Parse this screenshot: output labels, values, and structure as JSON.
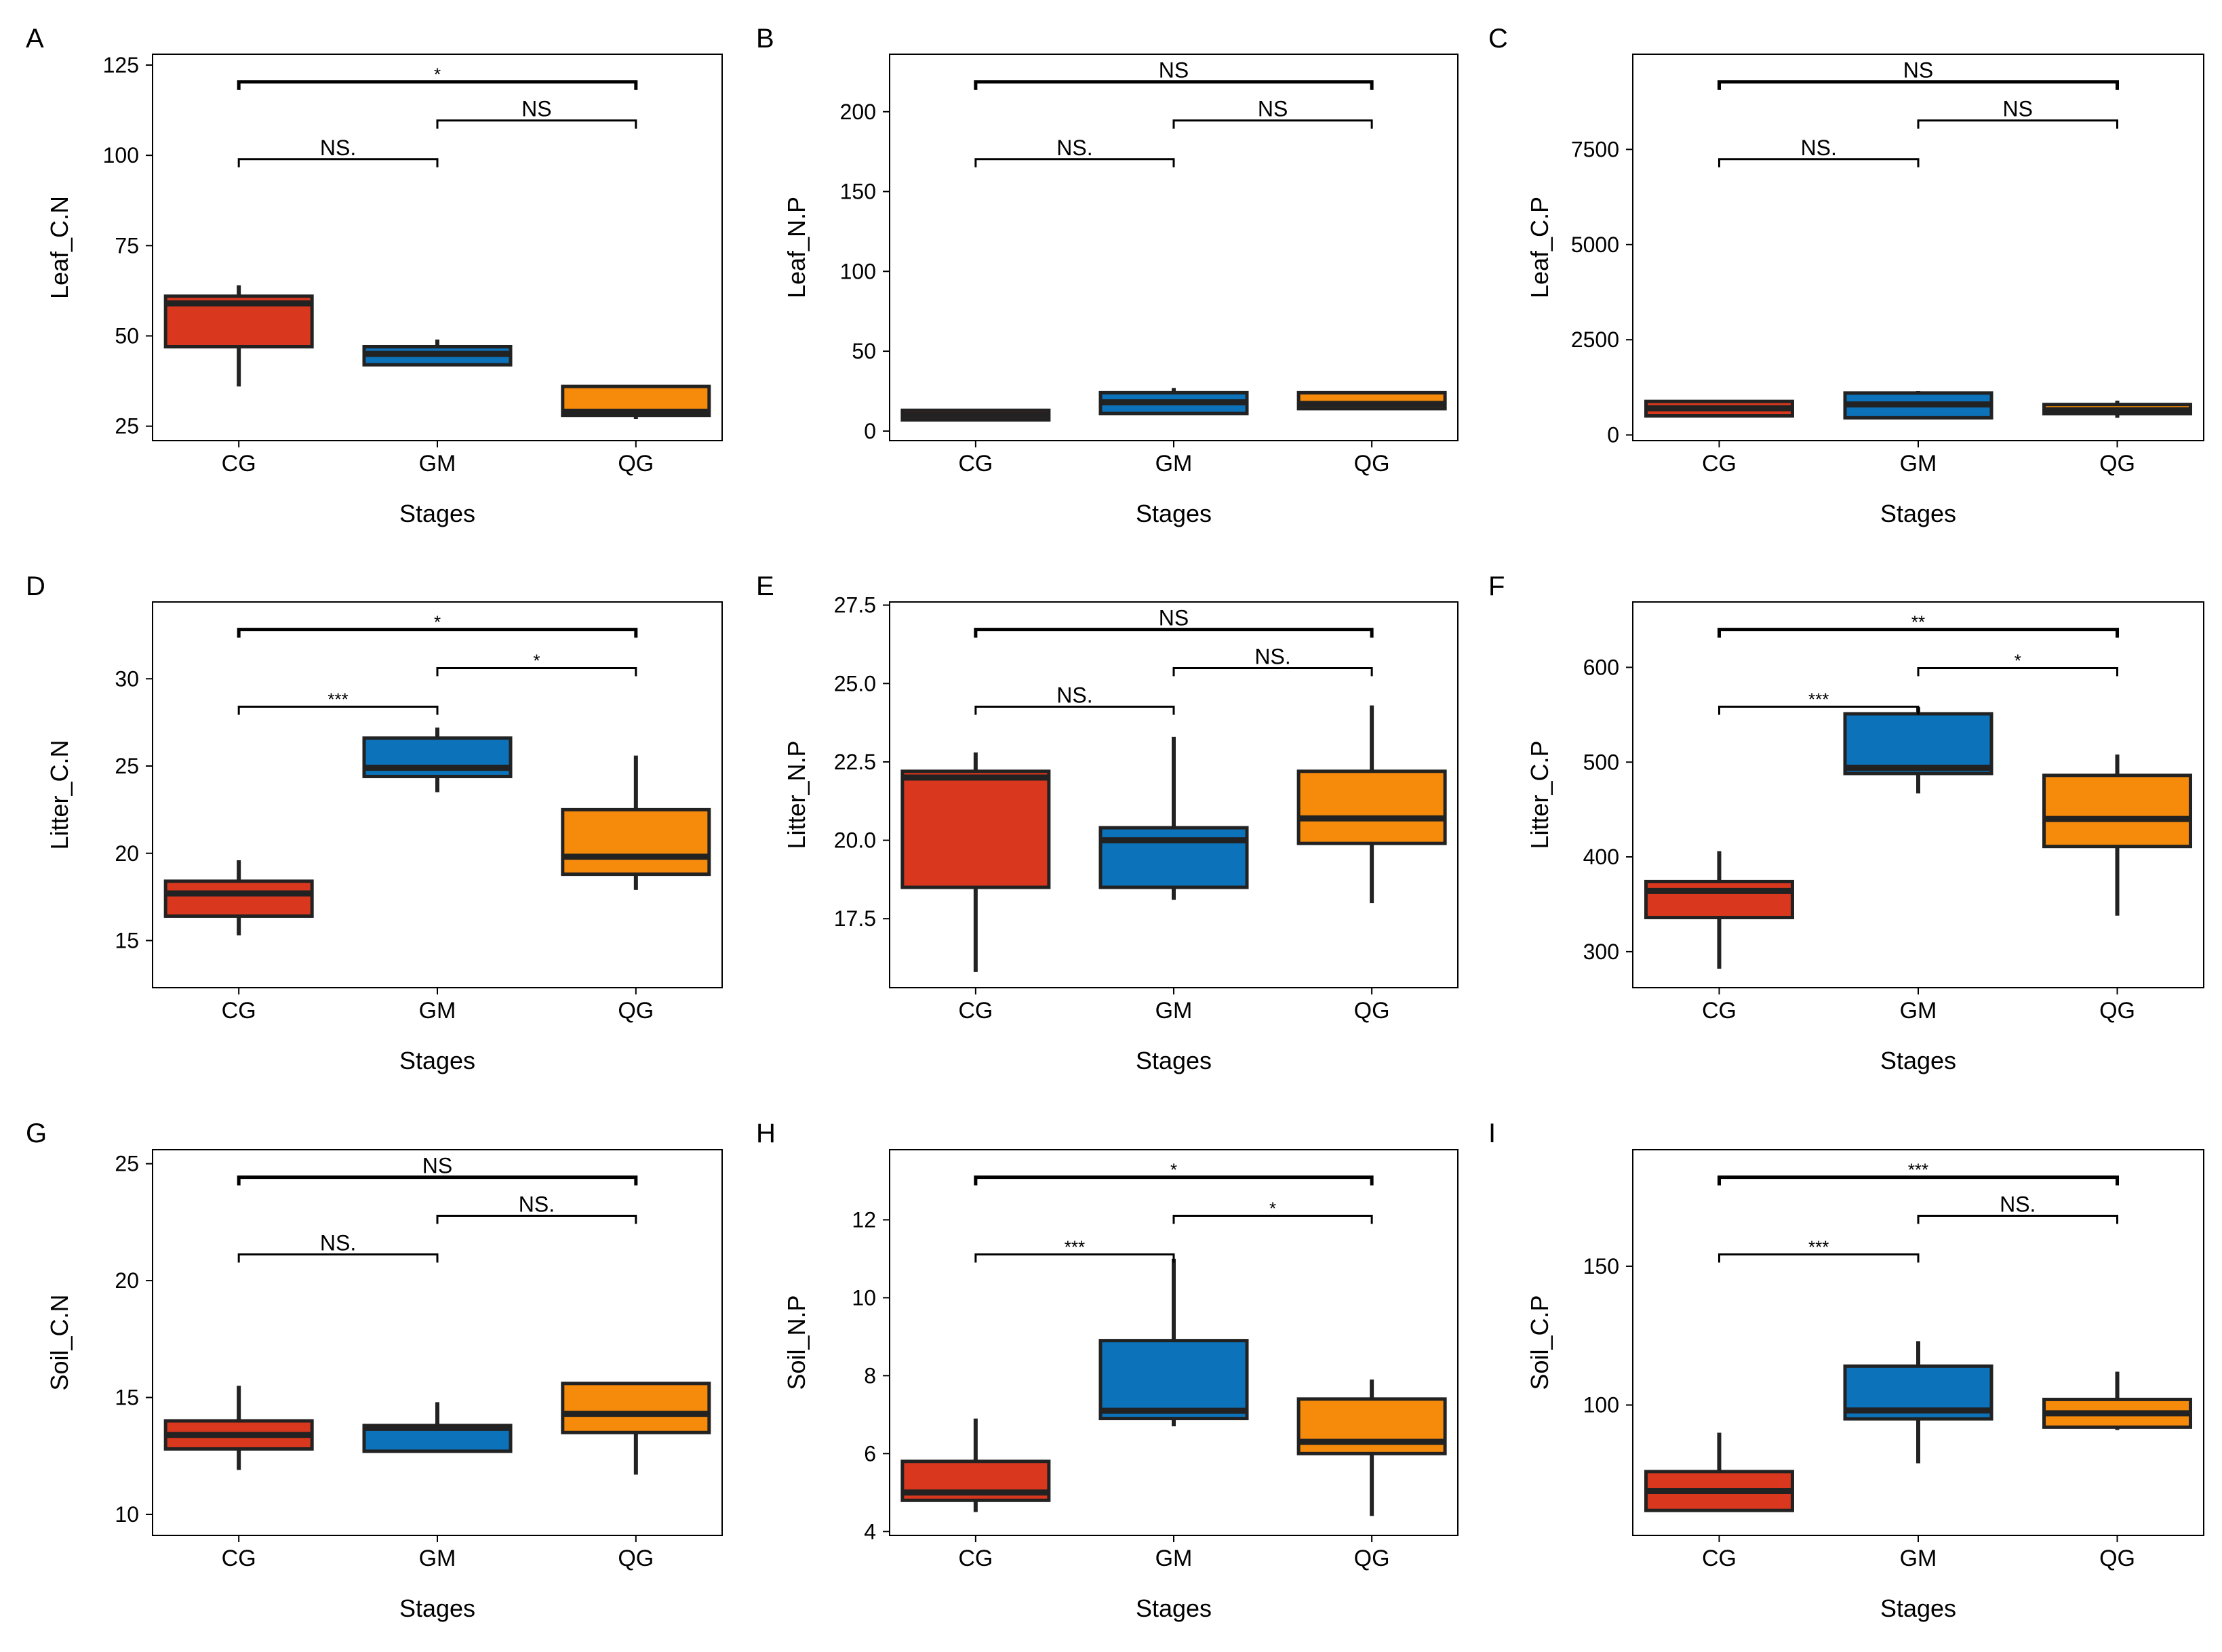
{
  "colors": {
    "CG": "#d9381e",
    "GM": "#0c72ba",
    "QG": "#f58a0b",
    "frame": "#000000",
    "whisker": "#222222"
  },
  "xlabel": "Stages",
  "categories": [
    "CG",
    "GM",
    "QG"
  ],
  "chart_data": [
    {
      "type": "box",
      "panel": "A",
      "ylabel": "Leaf_C.N",
      "ylim": [
        21,
        128
      ],
      "yticks": [
        "25",
        "50",
        "75",
        "100",
        "125"
      ],
      "ytick_values": [
        25,
        50,
        75,
        100,
        125
      ],
      "groups": [
        {
          "name": "CG",
          "whisker_low": 36,
          "q1": 47,
          "median": 59,
          "q3": 61,
          "whisker_high": 64
        },
        {
          "name": "GM",
          "whisker_low": 42,
          "q1": 42,
          "median": 45,
          "q3": 47,
          "whisker_high": 49
        },
        {
          "name": "QG",
          "whisker_low": 27,
          "q1": 28,
          "median": 29,
          "q3": 36,
          "whisker_high": 36
        }
      ],
      "brackets": [
        {
          "from": "CG",
          "to": "GM",
          "level": 1,
          "label": "NS."
        },
        {
          "from": "GM",
          "to": "QG",
          "level": 2,
          "label": "NS"
        },
        {
          "from": "CG",
          "to": "QG",
          "level": 3,
          "label": "*"
        }
      ]
    },
    {
      "type": "box",
      "panel": "B",
      "ylabel": "Leaf_N.P",
      "ylim": [
        -6,
        236
      ],
      "yticks": [
        "0",
        "50",
        "100",
        "150",
        "200"
      ],
      "ytick_values": [
        0,
        50,
        100,
        150,
        200
      ],
      "groups": [
        {
          "name": "CG",
          "whisker_low": 7,
          "q1": 7,
          "median": 10,
          "q3": 13,
          "whisker_high": 13
        },
        {
          "name": "GM",
          "whisker_low": 11,
          "q1": 11,
          "median": 18,
          "q3": 24,
          "whisker_high": 27
        },
        {
          "name": "QG",
          "whisker_low": 14,
          "q1": 14,
          "median": 17,
          "q3": 24,
          "whisker_high": 24
        }
      ],
      "brackets": [
        {
          "from": "CG",
          "to": "GM",
          "level": 1,
          "label": "NS."
        },
        {
          "from": "GM",
          "to": "QG",
          "level": 2,
          "label": "NS"
        },
        {
          "from": "CG",
          "to": "QG",
          "level": 3,
          "label": "NS"
        }
      ]
    },
    {
      "type": "box",
      "panel": "C",
      "ylabel": "Leaf_C.P",
      "ylim": [
        -150,
        10000
      ],
      "yticks": [
        "0",
        "2500",
        "5000",
        "7500"
      ],
      "ytick_values": [
        0,
        2500,
        5000,
        7500
      ],
      "groups": [
        {
          "name": "CG",
          "whisker_low": 500,
          "q1": 500,
          "median": 700,
          "q3": 880,
          "whisker_high": 880
        },
        {
          "name": "GM",
          "whisker_low": 450,
          "q1": 450,
          "median": 800,
          "q3": 1100,
          "whisker_high": 1150
        },
        {
          "name": "QG",
          "whisker_low": 450,
          "q1": 560,
          "median": 650,
          "q3": 800,
          "whisker_high": 900
        }
      ],
      "brackets": [
        {
          "from": "CG",
          "to": "GM",
          "level": 1,
          "label": "NS."
        },
        {
          "from": "GM",
          "to": "QG",
          "level": 2,
          "label": "NS"
        },
        {
          "from": "CG",
          "to": "QG",
          "level": 3,
          "label": "NS"
        }
      ]
    },
    {
      "type": "box",
      "panel": "D",
      "ylabel": "Litter_C.N",
      "ylim": [
        12.3,
        34.4
      ],
      "yticks": [
        "15",
        "20",
        "25",
        "30"
      ],
      "ytick_values": [
        15,
        20,
        25,
        30
      ],
      "groups": [
        {
          "name": "CG",
          "whisker_low": 15.3,
          "q1": 16.4,
          "median": 17.7,
          "q3": 18.4,
          "whisker_high": 19.6
        },
        {
          "name": "GM",
          "whisker_low": 23.5,
          "q1": 24.4,
          "median": 24.9,
          "q3": 26.6,
          "whisker_high": 27.2
        },
        {
          "name": "QG",
          "whisker_low": 17.9,
          "q1": 18.8,
          "median": 19.8,
          "q3": 22.5,
          "whisker_high": 25.6
        }
      ],
      "brackets": [
        {
          "from": "CG",
          "to": "GM",
          "level": 1,
          "label": "***"
        },
        {
          "from": "GM",
          "to": "QG",
          "level": 2,
          "label": "*"
        },
        {
          "from": "CG",
          "to": "QG",
          "level": 3,
          "label": "*"
        }
      ]
    },
    {
      "type": "box",
      "panel": "E",
      "ylabel": "Litter_N.P",
      "ylim": [
        15.3,
        27.6
      ],
      "yticks": [
        "17.5",
        "20.0",
        "22.5",
        "25.0",
        "27.5"
      ],
      "ytick_values": [
        17.5,
        20,
        22.5,
        25,
        27.5
      ],
      "groups": [
        {
          "name": "CG",
          "whisker_low": 15.8,
          "q1": 18.5,
          "median": 22.0,
          "q3": 22.2,
          "whisker_high": 22.8
        },
        {
          "name": "GM",
          "whisker_low": 18.1,
          "q1": 18.5,
          "median": 20.0,
          "q3": 20.4,
          "whisker_high": 23.3
        },
        {
          "name": "QG",
          "whisker_low": 18.0,
          "q1": 19.9,
          "median": 20.7,
          "q3": 22.2,
          "whisker_high": 24.3
        }
      ],
      "brackets": [
        {
          "from": "CG",
          "to": "GM",
          "level": 1,
          "label": "NS."
        },
        {
          "from": "GM",
          "to": "QG",
          "level": 2,
          "label": "NS."
        },
        {
          "from": "CG",
          "to": "QG",
          "level": 3,
          "label": "NS"
        }
      ]
    },
    {
      "type": "box",
      "panel": "F",
      "ylabel": "Litter_C.P",
      "ylim": [
        262,
        669
      ],
      "yticks": [
        "300",
        "400",
        "500",
        "600"
      ],
      "ytick_values": [
        300,
        400,
        500,
        600
      ],
      "groups": [
        {
          "name": "CG",
          "whisker_low": 282,
          "q1": 336,
          "median": 364,
          "q3": 374,
          "whisker_high": 406
        },
        {
          "name": "GM",
          "whisker_low": 467,
          "q1": 488,
          "median": 494,
          "q3": 551,
          "whisker_high": 558
        },
        {
          "name": "QG",
          "whisker_low": 338,
          "q1": 411,
          "median": 440,
          "q3": 486,
          "whisker_high": 508
        }
      ],
      "brackets": [
        {
          "from": "CG",
          "to": "GM",
          "level": 1,
          "label": "***"
        },
        {
          "from": "GM",
          "to": "QG",
          "level": 2,
          "label": "*"
        },
        {
          "from": "CG",
          "to": "QG",
          "level": 3,
          "label": "**"
        }
      ]
    },
    {
      "type": "box",
      "panel": "G",
      "ylabel": "Soil_C.N",
      "ylim": [
        9.1,
        25.6
      ],
      "yticks": [
        "10",
        "15",
        "20",
        "25"
      ],
      "ytick_values": [
        10,
        15,
        20,
        25
      ],
      "groups": [
        {
          "name": "CG",
          "whisker_low": 11.9,
          "q1": 12.8,
          "median": 13.4,
          "q3": 14.0,
          "whisker_high": 15.5
        },
        {
          "name": "GM",
          "whisker_low": 12.7,
          "q1": 12.7,
          "median": 13.7,
          "q3": 13.8,
          "whisker_high": 14.8
        },
        {
          "name": "QG",
          "whisker_low": 11.7,
          "q1": 13.5,
          "median": 14.3,
          "q3": 15.6,
          "whisker_high": 15.6
        }
      ],
      "brackets": [
        {
          "from": "CG",
          "to": "GM",
          "level": 1,
          "label": "NS."
        },
        {
          "from": "GM",
          "to": "QG",
          "level": 2,
          "label": "NS."
        },
        {
          "from": "CG",
          "to": "QG",
          "level": 3,
          "label": "NS"
        }
      ]
    },
    {
      "type": "box",
      "panel": "H",
      "ylabel": "Soil_N.P",
      "ylim": [
        3.9,
        13.8
      ],
      "yticks": [
        "4",
        "6",
        "8",
        "10",
        "12"
      ],
      "ytick_values": [
        4,
        6,
        8,
        10,
        12
      ],
      "groups": [
        {
          "name": "CG",
          "whisker_low": 4.5,
          "q1": 4.8,
          "median": 5.0,
          "q3": 5.8,
          "whisker_high": 6.9
        },
        {
          "name": "GM",
          "whisker_low": 6.7,
          "q1": 6.9,
          "median": 7.1,
          "q3": 8.9,
          "whisker_high": 11.0
        },
        {
          "name": "QG",
          "whisker_low": 4.4,
          "q1": 6.0,
          "median": 6.3,
          "q3": 7.4,
          "whisker_high": 7.9
        }
      ],
      "brackets": [
        {
          "from": "CG",
          "to": "GM",
          "level": 1,
          "label": "***"
        },
        {
          "from": "GM",
          "to": "QG",
          "level": 2,
          "label": "*"
        },
        {
          "from": "CG",
          "to": "QG",
          "level": 3,
          "label": "*"
        }
      ]
    },
    {
      "type": "box",
      "panel": "I",
      "ylabel": "Soil_C.P",
      "ylim": [
        53,
        192
      ],
      "yticks": [
        "100",
        "150"
      ],
      "ytick_values": [
        100,
        150
      ],
      "groups": [
        {
          "name": "CG",
          "whisker_low": 62,
          "q1": 62,
          "median": 69,
          "q3": 76,
          "whisker_high": 90
        },
        {
          "name": "GM",
          "whisker_low": 79,
          "q1": 95,
          "median": 98,
          "q3": 114,
          "whisker_high": 123
        },
        {
          "name": "QG",
          "whisker_low": 91,
          "q1": 92,
          "median": 97,
          "q3": 102,
          "whisker_high": 112
        }
      ],
      "brackets": [
        {
          "from": "CG",
          "to": "GM",
          "level": 1,
          "label": "***"
        },
        {
          "from": "GM",
          "to": "QG",
          "level": 2,
          "label": "NS."
        },
        {
          "from": "CG",
          "to": "QG",
          "level": 3,
          "label": "***"
        }
      ]
    }
  ]
}
